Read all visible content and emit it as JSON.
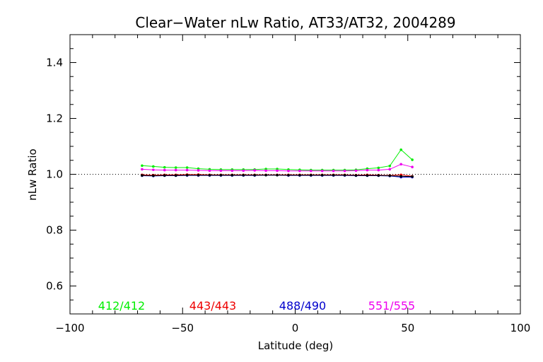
{
  "chart_data": {
    "type": "line",
    "title": "Clear−Water nLw Ratio, AT33/AT32, 2004289",
    "xlabel": "Latitude (deg)",
    "ylabel": "nLw Ratio",
    "xlim": [
      -100,
      100
    ],
    "ylim": [
      0.5,
      1.5
    ],
    "xticks": [
      -100,
      -50,
      0,
      50,
      100
    ],
    "xtick_labels": [
      "−100",
      "−50",
      "0",
      "50",
      "100"
    ],
    "yticks": [
      0.6,
      0.8,
      1.0,
      1.2,
      1.4
    ],
    "ytick_labels": [
      "0.6",
      "0.8",
      "1.0",
      "1.2",
      "1.4"
    ],
    "reference_line": 1.0,
    "legend_placement": "bottom-inside",
    "x": [
      -68,
      -63,
      -58,
      -53,
      -48,
      -43,
      -38,
      -33,
      -28,
      -23,
      -18,
      -13,
      -8,
      -3,
      2,
      7,
      12,
      17,
      22,
      27,
      32,
      37,
      42,
      47,
      52
    ],
    "series": [
      {
        "name": "412/412",
        "color": "#00ee00",
        "values": [
          1.031,
          1.028,
          1.025,
          1.024,
          1.024,
          1.02,
          1.018,
          1.017,
          1.017,
          1.017,
          1.017,
          1.019,
          1.019,
          1.017,
          1.016,
          1.015,
          1.015,
          1.015,
          1.015,
          1.016,
          1.02,
          1.023,
          1.03,
          1.088,
          1.052
        ]
      },
      {
        "name": "443/443",
        "color": "#ee0000",
        "values": [
          0.998,
          0.997,
          0.998,
          0.998,
          0.999,
          0.999,
          0.998,
          0.998,
          0.998,
          0.998,
          0.998,
          0.998,
          0.998,
          0.998,
          0.998,
          0.998,
          0.998,
          0.998,
          0.998,
          0.997,
          0.998,
          0.997,
          0.996,
          0.998,
          0.993
        ]
      },
      {
        "name": "488/490",
        "color": "#0000cc",
        "values": [
          0.995,
          0.994,
          0.995,
          0.995,
          0.996,
          0.996,
          0.996,
          0.996,
          0.996,
          0.996,
          0.996,
          0.997,
          0.997,
          0.996,
          0.996,
          0.996,
          0.996,
          0.996,
          0.996,
          0.995,
          0.995,
          0.995,
          0.994,
          0.99,
          0.99
        ]
      },
      {
        "name": "551/555",
        "color": "#ee00ee",
        "values": [
          1.018,
          1.016,
          1.015,
          1.015,
          1.015,
          1.014,
          1.013,
          1.013,
          1.013,
          1.013,
          1.014,
          1.013,
          1.013,
          1.012,
          1.012,
          1.012,
          1.012,
          1.012,
          1.012,
          1.013,
          1.015,
          1.015,
          1.018,
          1.036,
          1.026
        ]
      },
      {
        "name": "",
        "color": "#000000",
        "values": [
          0.996,
          0.995,
          0.996,
          0.996,
          0.997,
          0.997,
          0.997,
          0.997,
          0.997,
          0.997,
          0.997,
          0.997,
          0.997,
          0.997,
          0.997,
          0.997,
          0.997,
          0.997,
          0.997,
          0.996,
          0.996,
          0.996,
          0.995,
          0.993,
          0.992
        ]
      }
    ]
  }
}
